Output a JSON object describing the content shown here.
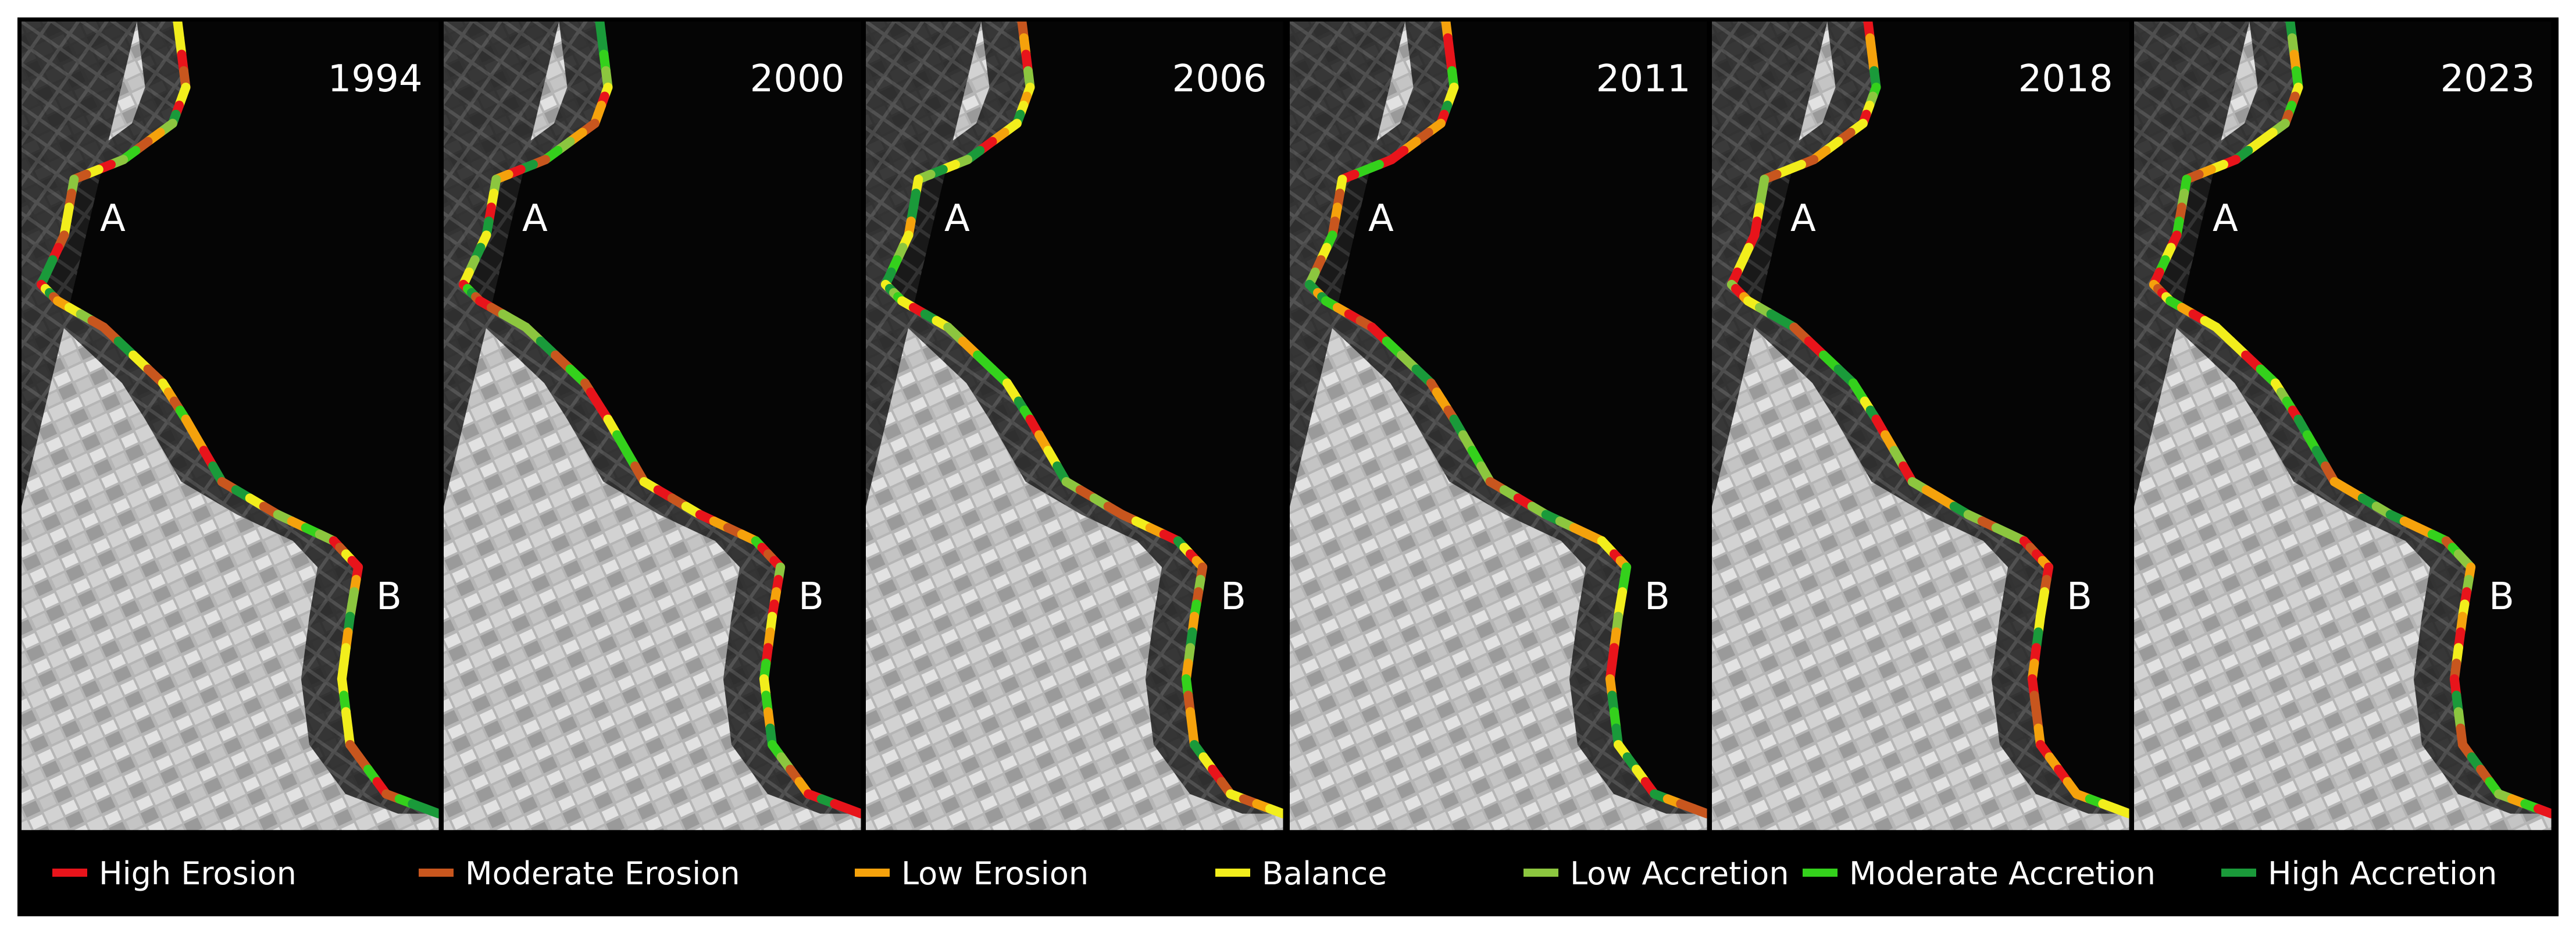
{
  "panels": [
    {
      "year": "1994",
      "label_a": "A",
      "label_b": "B"
    },
    {
      "year": "2000",
      "label_a": "A",
      "label_b": "B"
    },
    {
      "year": "2006",
      "label_a": "A",
      "label_b": "B"
    },
    {
      "year": "2011",
      "label_a": "A",
      "label_b": "B"
    },
    {
      "year": "2018",
      "label_a": "A",
      "label_b": "B"
    },
    {
      "year": "2023",
      "label_a": "A",
      "label_b": "B"
    }
  ],
  "legend": [
    {
      "label": "High Erosion",
      "color": "#e8141b"
    },
    {
      "label": "Moderate Erosion",
      "color": "#c8561e"
    },
    {
      "label": "Low Erosion",
      "color": "#f5a20c"
    },
    {
      "label": "Balance",
      "color": "#f2ee1c"
    },
    {
      "label": "Low Accretion",
      "color": "#8cc63f"
    },
    {
      "label": "Moderate Accretion",
      "color": "#34d11c"
    },
    {
      "label": "High Accretion",
      "color": "#1a9a3a"
    }
  ]
}
